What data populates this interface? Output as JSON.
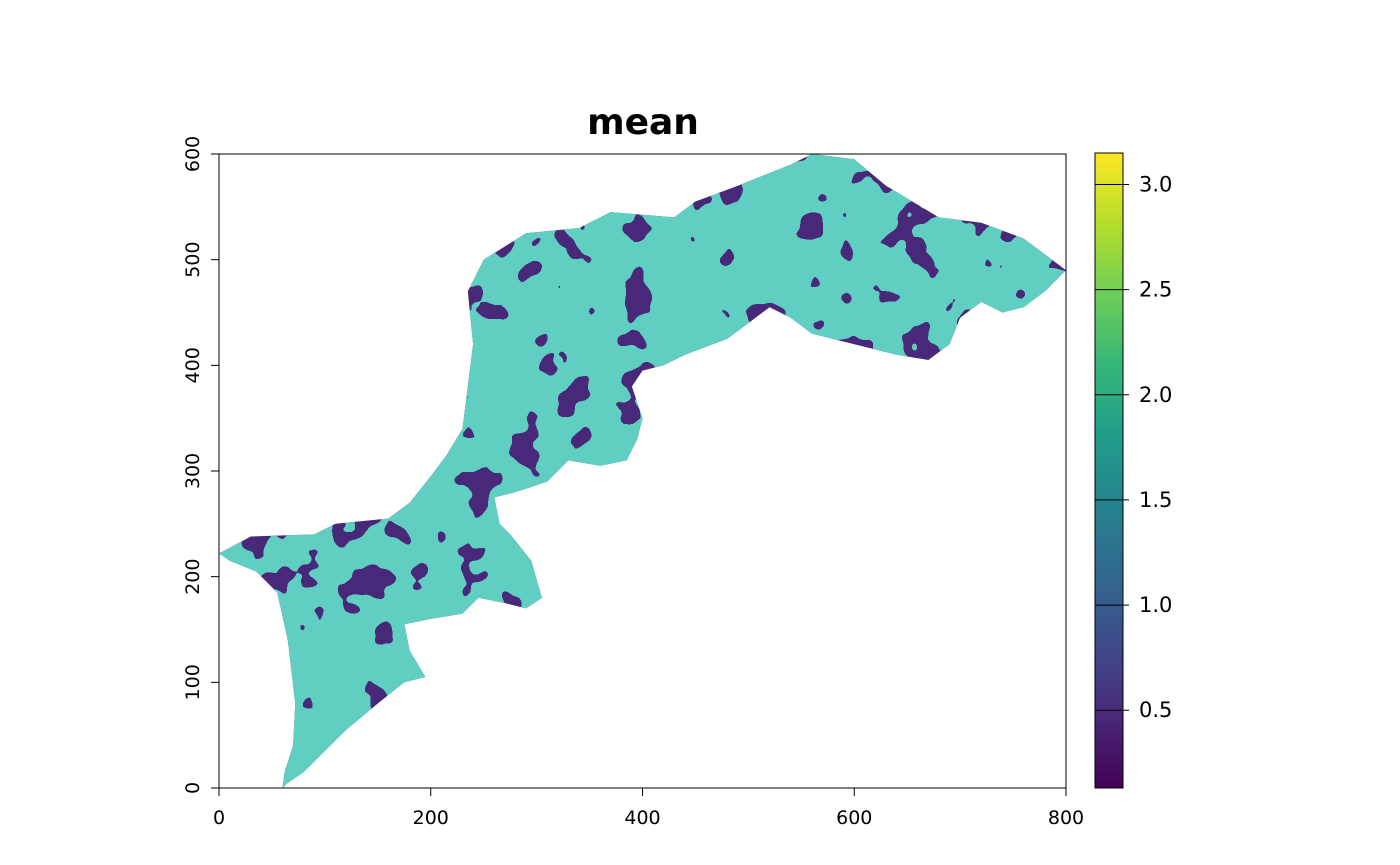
{
  "chart_data": {
    "type": "heatmap",
    "title": "mean",
    "xlabel": "",
    "ylabel": "",
    "xlim": [
      0,
      800
    ],
    "ylim": [
      0,
      600
    ],
    "x_ticks": [
      0,
      200,
      400,
      600,
      800
    ],
    "y_ticks": [
      0,
      100,
      200,
      300,
      400,
      500,
      600
    ],
    "colorbar": {
      "min": 0.13,
      "max": 3.15,
      "ticks": [
        0.5,
        1.0,
        1.5,
        2.0,
        2.5,
        3.0
      ],
      "tick_labels": [
        "0.5",
        "1.0",
        "1.5",
        "2.0",
        "2.5",
        "3.0"
      ],
      "palette": [
        "#440154",
        "#482878",
        "#3e4a89",
        "#31688e",
        "#26828e",
        "#1f9e89",
        "#35b779",
        "#6ece58",
        "#b5de2b",
        "#fde725"
      ],
      "placement": "right"
    },
    "region_outline": [
      [
        0,
        222
      ],
      [
        30,
        238
      ],
      [
        90,
        240
      ],
      [
        110,
        250
      ],
      [
        160,
        255
      ],
      [
        180,
        270
      ],
      [
        200,
        295
      ],
      [
        215,
        315
      ],
      [
        230,
        340
      ],
      [
        235,
        380
      ],
      [
        240,
        420
      ],
      [
        235,
        470
      ],
      [
        250,
        500
      ],
      [
        290,
        525
      ],
      [
        340,
        530
      ],
      [
        370,
        545
      ],
      [
        430,
        540
      ],
      [
        450,
        555
      ],
      [
        490,
        570
      ],
      [
        540,
        590
      ],
      [
        560,
        600
      ],
      [
        600,
        595
      ],
      [
        630,
        570
      ],
      [
        680,
        540
      ],
      [
        720,
        535
      ],
      [
        760,
        520
      ],
      [
        800,
        490
      ],
      [
        780,
        470
      ],
      [
        760,
        455
      ],
      [
        740,
        450
      ],
      [
        720,
        460
      ],
      [
        700,
        445
      ],
      [
        690,
        420
      ],
      [
        670,
        405
      ],
      [
        640,
        410
      ],
      [
        600,
        420
      ],
      [
        560,
        430
      ],
      [
        540,
        445
      ],
      [
        520,
        455
      ],
      [
        500,
        440
      ],
      [
        480,
        425
      ],
      [
        440,
        410
      ],
      [
        420,
        400
      ],
      [
        400,
        395
      ],
      [
        390,
        380
      ],
      [
        400,
        350
      ],
      [
        395,
        330
      ],
      [
        385,
        310
      ],
      [
        360,
        305
      ],
      [
        330,
        310
      ],
      [
        310,
        290
      ],
      [
        280,
        280
      ],
      [
        260,
        275
      ],
      [
        265,
        250
      ],
      [
        275,
        240
      ],
      [
        295,
        215
      ],
      [
        305,
        180
      ],
      [
        290,
        170
      ],
      [
        270,
        175
      ],
      [
        245,
        180
      ],
      [
        230,
        165
      ],
      [
        200,
        160
      ],
      [
        175,
        155
      ],
      [
        180,
        130
      ],
      [
        195,
        105
      ],
      [
        175,
        100
      ],
      [
        150,
        80
      ],
      [
        120,
        55
      ],
      [
        95,
        30
      ],
      [
        80,
        15
      ],
      [
        65,
        5
      ],
      [
        60,
        0
      ],
      [
        62,
        15
      ],
      [
        70,
        40
      ],
      [
        72,
        80
      ],
      [
        65,
        140
      ],
      [
        55,
        185
      ],
      [
        35,
        205
      ],
      [
        10,
        215
      ],
      [
        0,
        222
      ]
    ]
  }
}
